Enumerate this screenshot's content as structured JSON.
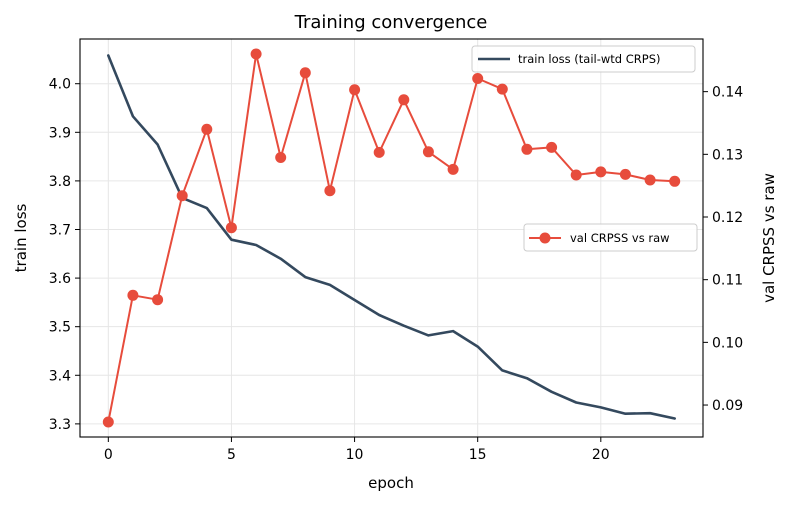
{
  "chart_data": {
    "type": "line",
    "title": "Training convergence",
    "xlabel": "epoch",
    "ylabel": "train loss",
    "y2label": "val CRPSS vs raw",
    "x": [
      0,
      1,
      2,
      3,
      4,
      5,
      6,
      7,
      8,
      9,
      10,
      11,
      12,
      13,
      14,
      15,
      16,
      17,
      18,
      19,
      20,
      21,
      22,
      23
    ],
    "xlim": [
      -1.15,
      24.15
    ],
    "ylim": [
      3.273,
      4.092
    ],
    "y2lim": [
      0.0849,
      0.1484
    ],
    "xticks": [
      0,
      5,
      10,
      15,
      20
    ],
    "yticks": [
      3.3,
      3.4,
      3.5,
      3.6,
      3.7,
      3.8,
      3.9,
      4.0
    ],
    "y2ticks": [
      0.09,
      0.1,
      0.11,
      0.12,
      0.13,
      0.14
    ],
    "grid": true,
    "series": [
      {
        "name": "train loss (tail-wtd CRPS)",
        "axis": "left",
        "color": "#34495e",
        "marker": "none",
        "values": [
          4.058,
          3.933,
          3.875,
          3.765,
          3.744,
          3.679,
          3.668,
          3.64,
          3.602,
          3.586,
          3.555,
          3.524,
          3.502,
          3.482,
          3.491,
          3.459,
          3.41,
          3.394,
          3.366,
          3.344,
          3.334,
          3.321,
          3.322,
          3.311
        ],
        "legend_position": "top-right"
      },
      {
        "name": "val CRPSS vs raw",
        "axis": "right",
        "color": "#e74c3c",
        "marker": "circle",
        "values": [
          0.0873,
          0.1075,
          0.1068,
          0.1234,
          0.134,
          0.1183,
          0.146,
          0.1295,
          0.143,
          0.1242,
          0.1403,
          0.1303,
          0.1387,
          0.1304,
          0.1276,
          0.1421,
          0.1404,
          0.1308,
          0.1311,
          0.1267,
          0.1272,
          0.1268,
          0.1259,
          0.1257
        ],
        "legend_position": "center-right"
      }
    ]
  }
}
